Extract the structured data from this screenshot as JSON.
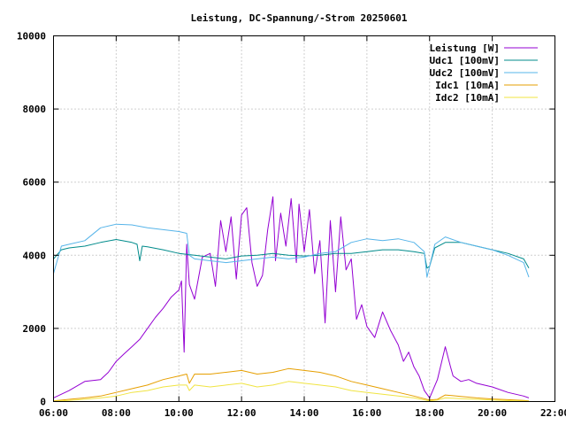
{
  "chart_data": {
    "type": "line",
    "title": "Leistung, DC-Spannung/-Strom 20250601",
    "xlabel": "",
    "ylabel": "",
    "xlim": [
      "06:00",
      "22:00"
    ],
    "ylim": [
      0,
      10000
    ],
    "x_ticks": [
      "06:00",
      "08:00",
      "10:00",
      "12:00",
      "14:00",
      "16:00",
      "18:00",
      "20:00",
      "22:00"
    ],
    "y_ticks": [
      "0",
      "2000",
      "4000",
      "6000",
      "8000",
      "10000"
    ],
    "grid": true,
    "legend_position": "top-right",
    "series": [
      {
        "name": "Leistung [W]",
        "color": "#9400d3",
        "x": [
          "06:00",
          "06:30",
          "07:00",
          "07:30",
          "07:45",
          "08:00",
          "08:15",
          "08:30",
          "08:45",
          "09:00",
          "09:15",
          "09:30",
          "09:45",
          "10:00",
          "10:05",
          "10:10",
          "10:15",
          "10:20",
          "10:30",
          "10:45",
          "11:00",
          "11:10",
          "11:20",
          "11:30",
          "11:40",
          "11:50",
          "12:00",
          "12:10",
          "12:20",
          "12:30",
          "12:40",
          "12:50",
          "13:00",
          "13:05",
          "13:15",
          "13:25",
          "13:35",
          "13:45",
          "13:50",
          "14:00",
          "14:10",
          "14:20",
          "14:30",
          "14:40",
          "14:50",
          "15:00",
          "15:10",
          "15:20",
          "15:30",
          "15:40",
          "15:50",
          "16:00",
          "16:15",
          "16:30",
          "16:45",
          "17:00",
          "17:10",
          "17:20",
          "17:30",
          "17:40",
          "17:50",
          "18:00",
          "18:15",
          "18:30",
          "18:40",
          "18:45",
          "19:00",
          "19:15",
          "19:30",
          "20:00",
          "20:30",
          "21:00",
          "21:10"
        ],
        "values": [
          100,
          300,
          550,
          600,
          800,
          1100,
          1300,
          1500,
          1700,
          2000,
          2300,
          2550,
          2850,
          3050,
          3300,
          1350,
          4300,
          3200,
          2800,
          3950,
          4050,
          3150,
          4950,
          4100,
          5050,
          3350,
          5100,
          5300,
          3800,
          3150,
          3450,
          4700,
          5600,
          3850,
          5150,
          4250,
          5550,
          3800,
          5400,
          4100,
          5250,
          3500,
          4400,
          2150,
          4950,
          3000,
          5050,
          3600,
          3900,
          2250,
          2650,
          2050,
          1750,
          2450,
          1950,
          1550,
          1100,
          1350,
          950,
          700,
          300,
          100,
          600,
          1500,
          950,
          700,
          550,
          600,
          500,
          400,
          250,
          150,
          100
        ]
      },
      {
        "name": "Udc1 [100mV]",
        "color": "#008b8b",
        "x": [
          "06:00",
          "06:15",
          "06:30",
          "07:00",
          "07:30",
          "08:00",
          "08:30",
          "08:40",
          "08:45",
          "08:50",
          "09:00",
          "09:30",
          "10:00",
          "10:30",
          "11:00",
          "11:30",
          "12:00",
          "12:30",
          "13:00",
          "13:30",
          "14:00",
          "14:30",
          "15:00",
          "15:30",
          "16:00",
          "16:30",
          "17:00",
          "17:30",
          "17:50",
          "17:55",
          "18:00",
          "18:10",
          "18:30",
          "19:00",
          "19:30",
          "20:00",
          "20:30",
          "21:00",
          "21:10"
        ],
        "values": [
          3900,
          4150,
          4200,
          4250,
          4350,
          4430,
          4350,
          4300,
          3850,
          4250,
          4230,
          4150,
          4050,
          4000,
          3950,
          3900,
          3980,
          4000,
          4050,
          4000,
          3980,
          4000,
          4050,
          4050,
          4100,
          4150,
          4150,
          4100,
          4050,
          3650,
          3700,
          4200,
          4350,
          4350,
          4250,
          4150,
          4050,
          3900,
          3650
        ]
      },
      {
        "name": "Udc2 [100mV]",
        "color": "#56b4e9",
        "x": [
          "06:00",
          "06:15",
          "06:30",
          "07:00",
          "07:30",
          "08:00",
          "08:30",
          "09:00",
          "09:30",
          "10:00",
          "10:15",
          "10:20",
          "10:30",
          "11:00",
          "11:30",
          "12:00",
          "12:30",
          "13:00",
          "13:30",
          "14:00",
          "14:30",
          "15:00",
          "15:30",
          "16:00",
          "16:30",
          "17:00",
          "17:30",
          "17:50",
          "17:55",
          "18:00",
          "18:10",
          "18:30",
          "19:00",
          "19:30",
          "20:00",
          "20:30",
          "21:00",
          "21:10"
        ],
        "values": [
          3500,
          4250,
          4300,
          4400,
          4750,
          4850,
          4830,
          4750,
          4700,
          4650,
          4600,
          4000,
          3900,
          3850,
          3800,
          3850,
          3900,
          3950,
          3900,
          3950,
          4050,
          4100,
          4350,
          4450,
          4400,
          4450,
          4350,
          4100,
          3400,
          3700,
          4300,
          4500,
          4350,
          4250,
          4150,
          4000,
          3800,
          3400
        ]
      },
      {
        "name": "Idc1 [10mA]",
        "color": "#e69f00",
        "x": [
          "06:00",
          "06:30",
          "07:00",
          "07:30",
          "08:00",
          "08:30",
          "09:00",
          "09:30",
          "10:00",
          "10:15",
          "10:20",
          "10:30",
          "11:00",
          "11:30",
          "12:00",
          "12:30",
          "13:00",
          "13:30",
          "14:00",
          "14:30",
          "15:00",
          "15:30",
          "16:00",
          "16:30",
          "17:00",
          "17:30",
          "18:00",
          "18:15",
          "18:30",
          "18:45",
          "19:00",
          "19:30",
          "20:00",
          "20:30",
          "21:00",
          "21:10"
        ],
        "values": [
          20,
          60,
          100,
          150,
          250,
          350,
          450,
          600,
          700,
          750,
          500,
          750,
          750,
          800,
          850,
          750,
          800,
          900,
          850,
          800,
          700,
          550,
          450,
          350,
          250,
          150,
          40,
          60,
          180,
          160,
          140,
          100,
          70,
          50,
          30,
          20
        ]
      },
      {
        "name": "Idc2 [10mA]",
        "color": "#f0e442",
        "x": [
          "06:00",
          "06:30",
          "07:00",
          "07:30",
          "08:00",
          "08:30",
          "09:00",
          "09:30",
          "10:00",
          "10:15",
          "10:20",
          "10:30",
          "11:00",
          "11:30",
          "12:00",
          "12:30",
          "13:00",
          "13:30",
          "14:00",
          "14:30",
          "15:00",
          "15:30",
          "16:00",
          "16:30",
          "17:00",
          "17:30",
          "18:00",
          "18:15",
          "18:30",
          "18:45",
          "19:00",
          "19:30",
          "20:00",
          "20:30",
          "21:00",
          "21:10"
        ],
        "values": [
          10,
          30,
          60,
          100,
          150,
          250,
          300,
          400,
          450,
          450,
          300,
          450,
          400,
          450,
          500,
          400,
          450,
          550,
          500,
          450,
          400,
          300,
          250,
          200,
          150,
          100,
          20,
          40,
          100,
          90,
          80,
          60,
          40,
          25,
          15,
          10
        ]
      }
    ]
  }
}
